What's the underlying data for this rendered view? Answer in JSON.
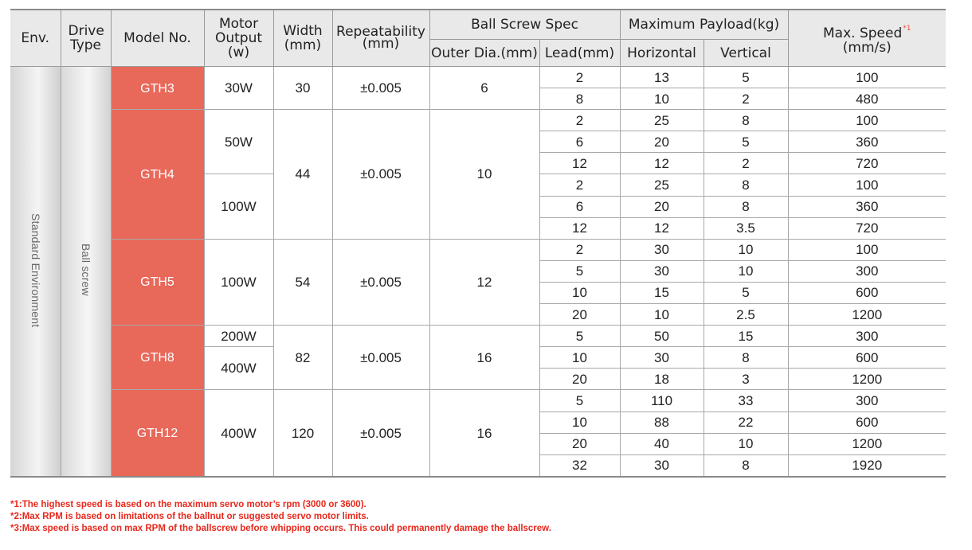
{
  "header": {
    "env": "Env.",
    "drive_type": "Drive Type",
    "model_no": "Model No.",
    "motor_output": "Motor Output (w)",
    "width": "Width (mm)",
    "repeatability": "Repeatability (mm)",
    "ball_screw_spec": "Ball Screw Spec",
    "outer_dia": "Outer Dia.(mm)",
    "lead": "Lead(mm)",
    "max_payload": "Maximum Payload(kg)",
    "horizontal": "Horizontal",
    "vertical": "Vertical",
    "max_speed": "Max. Speed",
    "max_speed_mark": "*1",
    "max_speed_unit": "(mm/s)"
  },
  "env_label": "Standard Environment",
  "drive_label": "Ball screw",
  "models": [
    {
      "model": "GTH3",
      "width": "30",
      "repeat": "±0.005",
      "dia": "6",
      "outputs": [
        {
          "output": "30W",
          "rows": [
            {
              "lead": "2",
              "h": "13",
              "v": "5",
              "speed": "100"
            },
            {
              "lead": "8",
              "h": "10",
              "v": "2",
              "speed": "480"
            }
          ]
        }
      ]
    },
    {
      "model": "GTH4",
      "width": "44",
      "repeat": "±0.005",
      "dia": "10",
      "outputs": [
        {
          "output": "50W",
          "rows": [
            {
              "lead": "2",
              "h": "25",
              "v": "8",
              "speed": "100"
            },
            {
              "lead": "6",
              "h": "20",
              "v": "5",
              "speed": "360"
            },
            {
              "lead": "12",
              "h": "12",
              "v": "2",
              "speed": "720"
            }
          ]
        },
        {
          "output": "100W",
          "rows": [
            {
              "lead": "2",
              "h": "25",
              "v": "8",
              "speed": "100"
            },
            {
              "lead": "6",
              "h": "20",
              "v": "8",
              "speed": "360"
            },
            {
              "lead": "12",
              "h": "12",
              "v": "3.5",
              "speed": "720"
            }
          ]
        }
      ]
    },
    {
      "model": "GTH5",
      "width": "54",
      "repeat": "±0.005",
      "dia": "12",
      "outputs": [
        {
          "output": "100W",
          "rows": [
            {
              "lead": "2",
              "h": "30",
              "v": "10",
              "speed": "100"
            },
            {
              "lead": "5",
              "h": "30",
              "v": "10",
              "speed": "300"
            },
            {
              "lead": "10",
              "h": "15",
              "v": "5",
              "speed": "600"
            },
            {
              "lead": "20",
              "h": "10",
              "v": "2.5",
              "speed": "1200"
            }
          ]
        }
      ]
    },
    {
      "model": "GTH8",
      "width": "82",
      "repeat": "±0.005",
      "dia": "16",
      "outputs": [
        {
          "output": "200W",
          "rows": [
            {
              "lead": "5",
              "h": "50",
              "v": "15",
              "speed": "300"
            }
          ]
        },
        {
          "output": "400W",
          "rows": [
            {
              "lead": "10",
              "h": "30",
              "v": "8",
              "speed": "600"
            },
            {
              "lead": "20",
              "h": "18",
              "v": "3",
              "speed": "1200"
            }
          ]
        }
      ]
    },
    {
      "model": "GTH12",
      "width": "120",
      "repeat": "±0.005",
      "dia": "16",
      "outputs": [
        {
          "output": "400W",
          "rows": [
            {
              "lead": "5",
              "h": "110",
              "v": "33",
              "speed": "300"
            },
            {
              "lead": "10",
              "h": "88",
              "v": "22",
              "speed": "600"
            },
            {
              "lead": "20",
              "h": "40",
              "v": "10",
              "speed": "1200"
            },
            {
              "lead": "32",
              "h": "30",
              "v": "8",
              "speed": "1920"
            }
          ]
        }
      ]
    }
  ],
  "footnotes": [
    "*1:The highest speed is based on the maximum servo motor’s rpm (3000 or 3600).",
    "*2:Max RPM is based on limitations of the ballnut or suggested servo motor limits.",
    "*3:Max speed is based on max RPM of the ballscrew before whipping occurs. This could permanently damage the ballscrew."
  ],
  "colors": {
    "model_cell": "#e8685a",
    "header_bg": "#e9e9e9",
    "footnote": "#e8281c"
  }
}
